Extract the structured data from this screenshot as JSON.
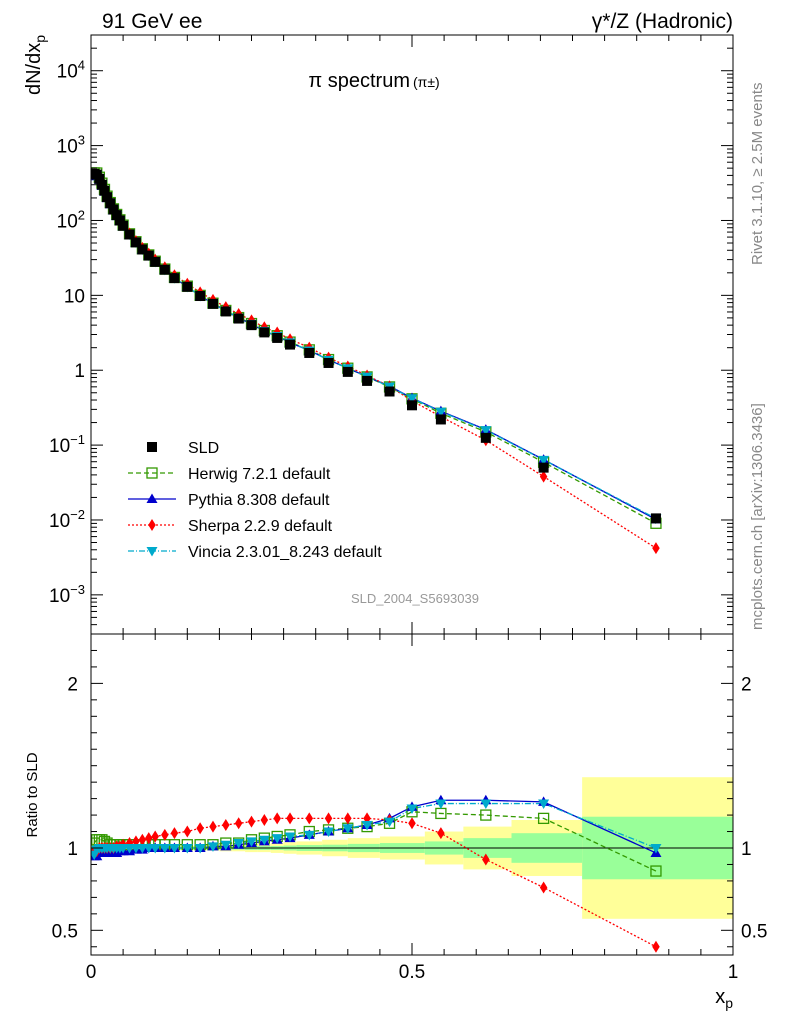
{
  "header": {
    "left": "91 GeV ee",
    "right": "γ*/Z (Hadronic)"
  },
  "side_texts": {
    "rivet": "Rivet 3.1.10, ≥ 2.5M events",
    "mcplots": "mcplots.cern.ch [arXiv:1306.3436]"
  },
  "chart_data": {
    "type": "line",
    "title": "π spectrum",
    "title_suffix": "(π±)",
    "analysis_id": "SLD_2004_S5693039",
    "xlabel": "x_p",
    "ylabel_main": "dN/dx_p",
    "ylabel_ratio": "Ratio to SLD",
    "xlim": [
      0,
      1
    ],
    "ylim_main": [
      0.0003,
      30000
    ],
    "ylog_main": true,
    "ylim_ratio": [
      0.35,
      2.3
    ],
    "main_yticks": [
      {
        "v": 0.001,
        "label": "10^-3"
      },
      {
        "v": 0.01,
        "label": "10^-2"
      },
      {
        "v": 0.1,
        "label": "10^-1"
      },
      {
        "v": 1,
        "label": "1"
      },
      {
        "v": 10,
        "label": "10"
      },
      {
        "v": 100,
        "label": "10^2"
      },
      {
        "v": 1000,
        "label": "10^3"
      },
      {
        "v": 10000,
        "label": "10^4"
      }
    ],
    "ratio_yticks": [
      {
        "v": 0.5,
        "label": "0.5"
      },
      {
        "v": 1,
        "label": "1"
      },
      {
        "v": 2,
        "label": "2"
      }
    ],
    "xticks": [
      {
        "v": 0,
        "label": "0"
      },
      {
        "v": 0.5,
        "label": "0.5"
      },
      {
        "v": 1,
        "label": "1"
      }
    ],
    "legend_position": "lower-left",
    "data": {
      "name": "SLD",
      "x": [
        0.005,
        0.009,
        0.013,
        0.017,
        0.021,
        0.025,
        0.03,
        0.035,
        0.04,
        0.045,
        0.05,
        0.06,
        0.07,
        0.08,
        0.09,
        0.1,
        0.115,
        0.13,
        0.15,
        0.17,
        0.19,
        0.21,
        0.23,
        0.25,
        0.27,
        0.29,
        0.31,
        0.34,
        0.37,
        0.4,
        0.43,
        0.465,
        0.5,
        0.545,
        0.615,
        0.705,
        0.88
      ],
      "y": [
        420,
        410,
        360,
        300,
        250,
        205,
        170,
        140,
        118,
        100,
        85,
        65,
        51,
        41,
        34,
        28,
        22,
        17,
        13,
        9.8,
        7.7,
        6.1,
        4.9,
        4.0,
        3.2,
        2.7,
        2.2,
        1.7,
        1.25,
        0.95,
        0.72,
        0.52,
        0.34,
        0.22,
        0.125,
        0.05,
        0.0105
      ]
    },
    "bands": {
      "x_edges": [
        0.0,
        0.02,
        0.04,
        0.06,
        0.08,
        0.1,
        0.12,
        0.14,
        0.16,
        0.18,
        0.2,
        0.22,
        0.24,
        0.26,
        0.28,
        0.3,
        0.32,
        0.36,
        0.4,
        0.45,
        0.52,
        0.58,
        0.655,
        0.765,
        1.0
      ],
      "stat_halfwidth": [
        0.02,
        0.015,
        0.012,
        0.012,
        0.01,
        0.01,
        0.01,
        0.01,
        0.01,
        0.01,
        0.01,
        0.01,
        0.012,
        0.012,
        0.012,
        0.015,
        0.018,
        0.02,
        0.025,
        0.03,
        0.04,
        0.06,
        0.09,
        0.19
      ],
      "total_halfwidth": [
        0.03,
        0.02,
        0.015,
        0.015,
        0.012,
        0.012,
        0.012,
        0.012,
        0.015,
        0.015,
        0.02,
        0.02,
        0.025,
        0.025,
        0.03,
        0.035,
        0.04,
        0.05,
        0.06,
        0.07,
        0.1,
        0.13,
        0.17,
        0.43
      ],
      "stat_color": "#99ff99",
      "total_color": "#ffff99"
    },
    "series": [
      {
        "name": "Herwig 7.2.1 default",
        "color": "#339900",
        "dash": "5,3",
        "marker": "open-square",
        "x": [
          0.005,
          0.009,
          0.013,
          0.017,
          0.021,
          0.025,
          0.03,
          0.035,
          0.04,
          0.045,
          0.05,
          0.06,
          0.07,
          0.08,
          0.09,
          0.1,
          0.115,
          0.13,
          0.15,
          0.17,
          0.19,
          0.21,
          0.23,
          0.25,
          0.27,
          0.29,
          0.31,
          0.34,
          0.37,
          0.4,
          0.43,
          0.465,
          0.5,
          0.545,
          0.615,
          0.705,
          0.88
        ],
        "ratio": [
          1.03,
          1.05,
          1.05,
          1.05,
          1.04,
          1.03,
          1.02,
          1.02,
          1.02,
          1.02,
          1.02,
          1.02,
          1.02,
          1.02,
          1.02,
          1.02,
          1.02,
          1.02,
          1.02,
          1.02,
          1.02,
          1.03,
          1.03,
          1.05,
          1.06,
          1.07,
          1.08,
          1.1,
          1.11,
          1.12,
          1.13,
          1.15,
          1.22,
          1.21,
          1.2,
          1.18,
          0.86
        ]
      },
      {
        "name": "Pythia 8.308 default",
        "color": "#0000cc",
        "dash": "",
        "marker": "triangle-up",
        "x": [
          0.005,
          0.009,
          0.013,
          0.017,
          0.021,
          0.025,
          0.03,
          0.035,
          0.04,
          0.045,
          0.05,
          0.06,
          0.07,
          0.08,
          0.09,
          0.1,
          0.115,
          0.13,
          0.15,
          0.17,
          0.19,
          0.21,
          0.23,
          0.25,
          0.27,
          0.29,
          0.31,
          0.34,
          0.37,
          0.4,
          0.43,
          0.465,
          0.5,
          0.545,
          0.615,
          0.705,
          0.88
        ],
        "ratio": [
          0.95,
          0.95,
          0.97,
          0.97,
          0.97,
          0.97,
          0.97,
          0.97,
          0.97,
          0.98,
          0.98,
          0.98,
          0.99,
          0.99,
          1.0,
          1.0,
          1.0,
          1.0,
          1.0,
          1.0,
          1.01,
          1.01,
          1.02,
          1.03,
          1.04,
          1.05,
          1.06,
          1.08,
          1.1,
          1.12,
          1.14,
          1.18,
          1.25,
          1.29,
          1.29,
          1.28,
          0.97
        ]
      },
      {
        "name": "Sherpa 2.2.9 default",
        "color": "#ff0000",
        "dash": "2,2",
        "marker": "diamond",
        "x": [
          0.005,
          0.009,
          0.013,
          0.017,
          0.021,
          0.025,
          0.03,
          0.035,
          0.04,
          0.045,
          0.05,
          0.06,
          0.07,
          0.08,
          0.09,
          0.1,
          0.115,
          0.13,
          0.15,
          0.17,
          0.19,
          0.21,
          0.23,
          0.25,
          0.27,
          0.29,
          0.31,
          0.34,
          0.37,
          0.4,
          0.43,
          0.465,
          0.5,
          0.545,
          0.615,
          0.705,
          0.88
        ],
        "ratio": [
          0.98,
          0.98,
          1.0,
          1.0,
          1.0,
          1.0,
          1.0,
          1.0,
          1.01,
          1.01,
          1.02,
          1.03,
          1.04,
          1.05,
          1.06,
          1.07,
          1.08,
          1.09,
          1.1,
          1.12,
          1.13,
          1.14,
          1.15,
          1.16,
          1.17,
          1.18,
          1.18,
          1.18,
          1.18,
          1.18,
          1.18,
          1.17,
          1.15,
          1.09,
          0.93,
          0.76,
          0.4
        ]
      },
      {
        "name": "Vincia 2.3.01_8.243 default",
        "color": "#00aacc",
        "dash": "6,2,1,2",
        "marker": "triangle-down",
        "x": [
          0.005,
          0.009,
          0.013,
          0.017,
          0.021,
          0.025,
          0.03,
          0.035,
          0.04,
          0.045,
          0.05,
          0.06,
          0.07,
          0.08,
          0.09,
          0.1,
          0.115,
          0.13,
          0.15,
          0.17,
          0.19,
          0.21,
          0.23,
          0.25,
          0.27,
          0.29,
          0.31,
          0.34,
          0.37,
          0.4,
          0.43,
          0.465,
          0.5,
          0.545,
          0.615,
          0.705,
          0.88
        ],
        "ratio": [
          0.96,
          0.99,
          1.0,
          1.0,
          1.0,
          1.0,
          1.0,
          1.0,
          1.0,
          1.0,
          1.0,
          1.0,
          1.0,
          1.0,
          1.0,
          1.0,
          1.0,
          1.0,
          1.0,
          1.0,
          1.01,
          1.02,
          1.03,
          1.04,
          1.05,
          1.06,
          1.07,
          1.08,
          1.1,
          1.12,
          1.14,
          1.16,
          1.24,
          1.27,
          1.27,
          1.27,
          1.0
        ]
      }
    ]
  }
}
